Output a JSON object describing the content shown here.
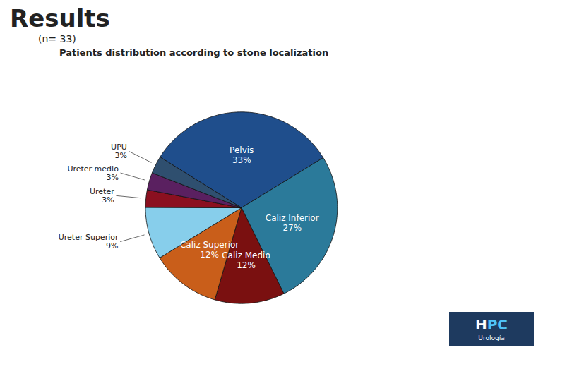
{
  "chart_data": {
    "type": "pie",
    "title": "Results",
    "subtitle": "(n= 33)",
    "annotations": [
      "Patients distribution according to stone localization",
      "H",
      "PC",
      "Urología"
    ],
    "categories": [
      "Pelvis",
      "Caliz Inferior",
      "Caliz Medio",
      "Caliz Superior",
      "Ureter Superior",
      "Ureter",
      "Ureter medio",
      "UPU"
    ],
    "values": [
      33,
      27,
      12,
      12,
      9,
      3,
      3,
      3
    ],
    "value_labels": [
      "33%",
      "27%",
      "12%",
      "12%",
      "9%",
      "3%",
      "3%",
      "3%"
    ],
    "colors": [
      "#1f4e8c",
      "#2b7a9a",
      "#7a1010",
      "#c95e1a",
      "#87ceeb",
      "#8b1020",
      "#5a2060",
      "#2f4f6f"
    ],
    "data_labels": true
  }
}
